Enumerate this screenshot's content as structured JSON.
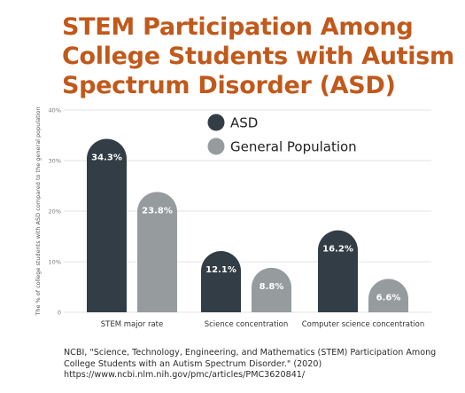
{
  "title": "STEM Participation Among College Students with Autism Spectrum Disorder (ASD)",
  "source": {
    "line1": "NCBI, \"Science, Technology, Engineering, and Mathematics (STEM) Participation Among",
    "line2": "College Students with an Autism Spectrum Disorder.\" (2020)",
    "line3": "https://www.ncbi.nlm.nih.gov/pmc/articles/PMC3620841/"
  },
  "chart_data": {
    "type": "bar",
    "title": "STEM Participation Among College Students with Autism Spectrum Disorder (ASD)",
    "xlabel": "",
    "ylabel": "The % of college students with ASD compared to the general population",
    "ylim": [
      0,
      40
    ],
    "yticks": [
      "0",
      "10%",
      "20%",
      "30%",
      "40%"
    ],
    "categories": [
      "STEM major rate",
      "Science concentration",
      "Computer science concentration"
    ],
    "series": [
      {
        "name": "ASD",
        "values": [
          34.3,
          12.1,
          16.2
        ],
        "labels": [
          "34.3%",
          "12.1%",
          "16.2%"
        ],
        "color": "#333d45"
      },
      {
        "name": "General Population",
        "values": [
          23.8,
          8.8,
          6.6
        ],
        "labels": [
          "23.8%",
          "8.8%",
          "6.6%"
        ],
        "color": "#969b9d"
      }
    ],
    "grid": true,
    "legend": "top-center",
    "label_color": "#ffffff"
  }
}
